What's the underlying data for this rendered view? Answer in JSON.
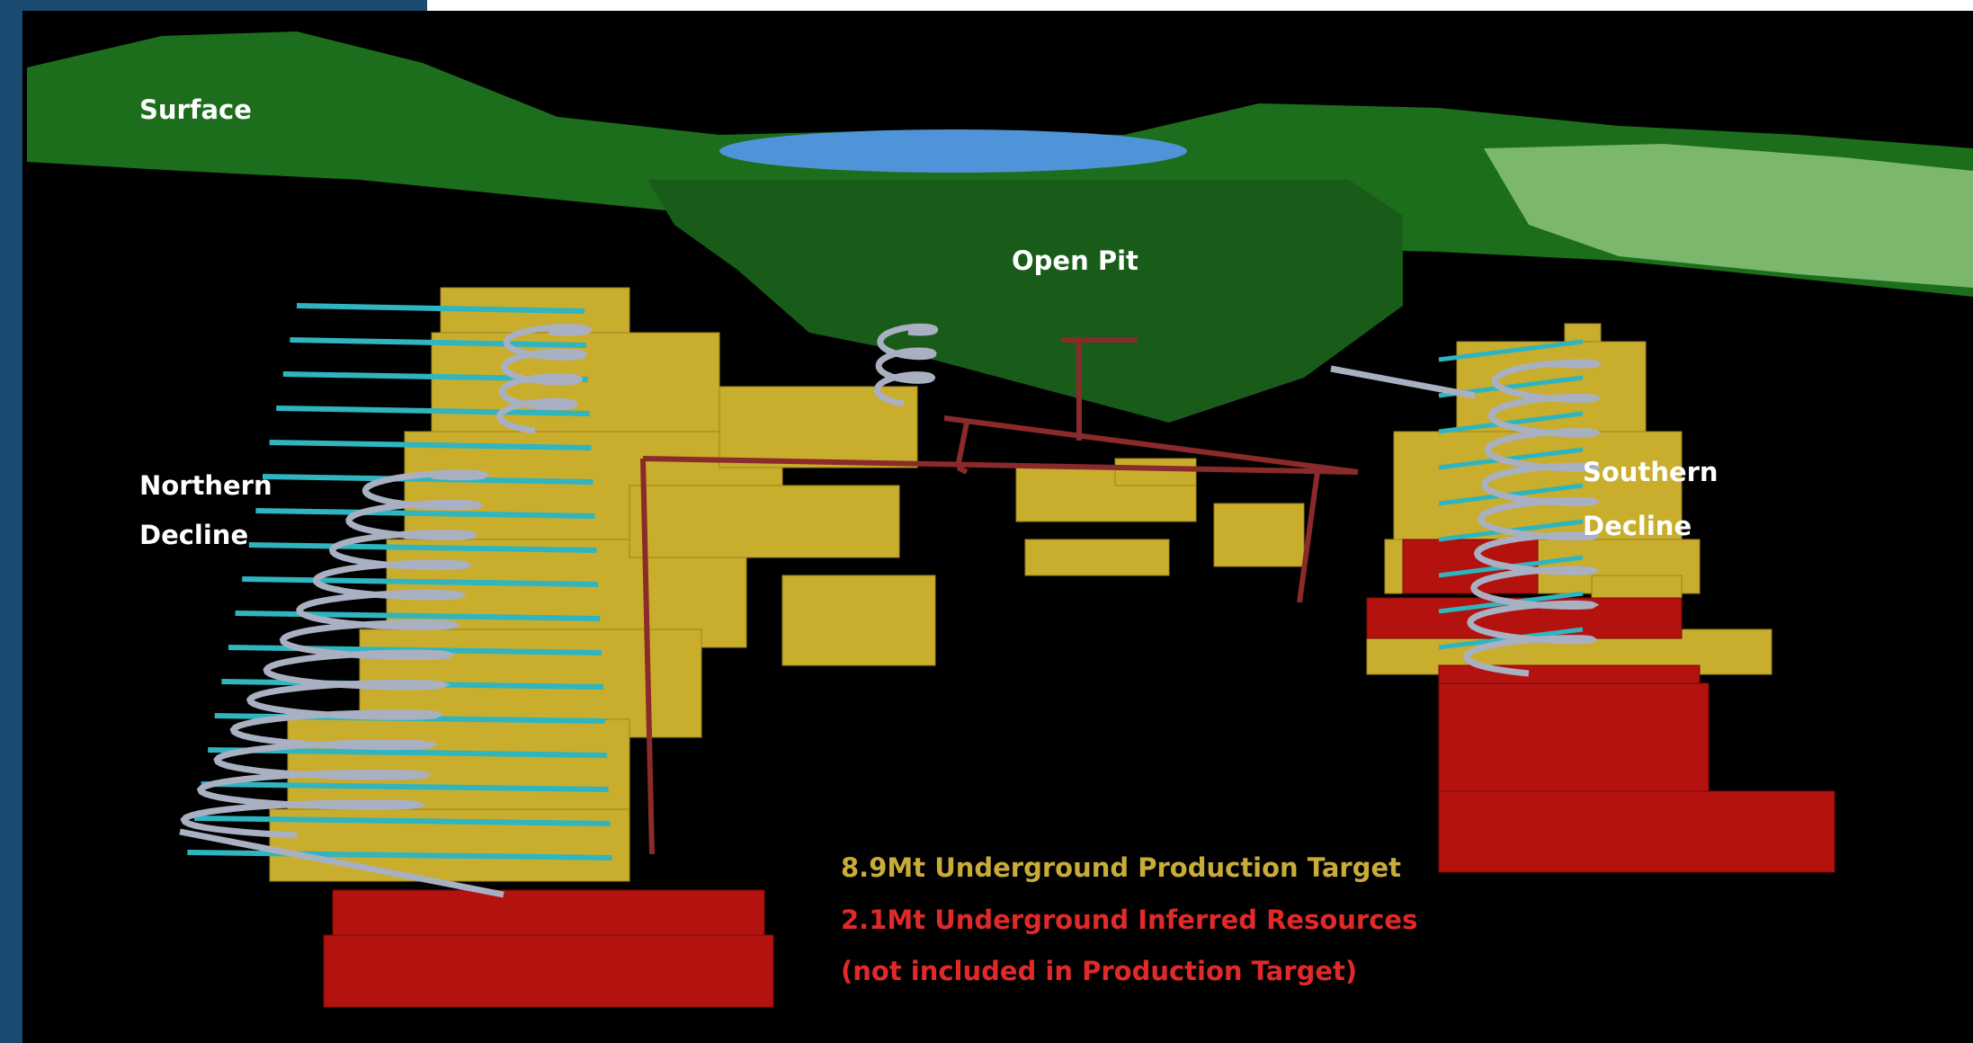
{
  "labels": {
    "surface": "Surface",
    "open_pit": "Open Pit",
    "northern_decline": [
      "Northern",
      "Decline"
    ],
    "southern_decline": [
      "Southern",
      "Decline"
    ]
  },
  "legend": {
    "production_target": "8.9Mt Underground Production Target",
    "inferred_resources": "2.1Mt Underground Inferred Resources",
    "note": "(not included in Production Target)"
  }
}
